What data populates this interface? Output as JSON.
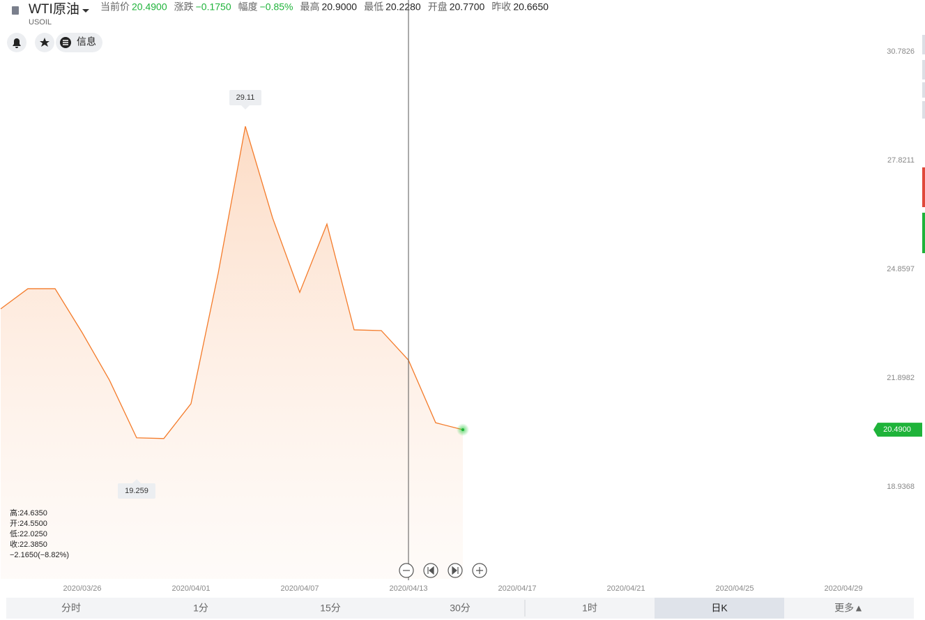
{
  "header": {
    "symbol": "WTI原油",
    "code": "USOIL",
    "quotes": [
      {
        "label": "当前价",
        "value": "20.4900",
        "color": "#1fb33a"
      },
      {
        "label": "涨跌",
        "value": "−0.1750",
        "color": "#1fb33a"
      },
      {
        "label": "幅度",
        "value": "−0.85%",
        "color": "#1fb33a"
      },
      {
        "label": "最高",
        "value": "20.9000",
        "color": "#222222"
      },
      {
        "label": "最低",
        "value": "20.2280",
        "color": "#222222"
      },
      {
        "label": "开盘",
        "value": "20.7700",
        "color": "#222222"
      },
      {
        "label": "昨收",
        "value": "20.6650",
        "color": "#222222"
      }
    ],
    "info_button": "信息"
  },
  "chart_data": {
    "type": "area",
    "categories": [
      null,
      null,
      null,
      "2020/03/26",
      null,
      null,
      null,
      "2020/04/01",
      null,
      null,
      null,
      "2020/04/07",
      null,
      null,
      null,
      "2020/04/13",
      null,
      null,
      null,
      "2020/04/17",
      null,
      null,
      null,
      "2020/04/21",
      null,
      null,
      null,
      "2020/04/25",
      null,
      null,
      null,
      "2020/04/29"
    ],
    "series": [
      {
        "color": "#f47b2a",
        "values": [
          23.78,
          24.33,
          24.33,
          23.13,
          21.84,
          20.27,
          20.25,
          21.2,
          24.75,
          28.75,
          26.26,
          24.23,
          26.09,
          23.21,
          23.19,
          22.385,
          20.68,
          20.49,
          null,
          null,
          null,
          null,
          null,
          null,
          null,
          null,
          null,
          null,
          null,
          null,
          null,
          null
        ]
      }
    ],
    "ylim": [
      16.43,
      31.81
    ],
    "yticks": [
      18.9368,
      21.8982,
      24.8597,
      27.8211,
      30.7826
    ],
    "annotations": {
      "max": "29.11",
      "min": "19.259",
      "last_price": "20.4900"
    },
    "info": [
      "高:24.6350",
      "开:24.5500",
      "低:22.0250",
      "收:22.3850",
      "−2.1650(−8.82%)"
    ]
  },
  "tabs": [
    "分时",
    "1分",
    "15分",
    "30分",
    "1时",
    "日K",
    "更多▲"
  ],
  "active_tab": 5
}
